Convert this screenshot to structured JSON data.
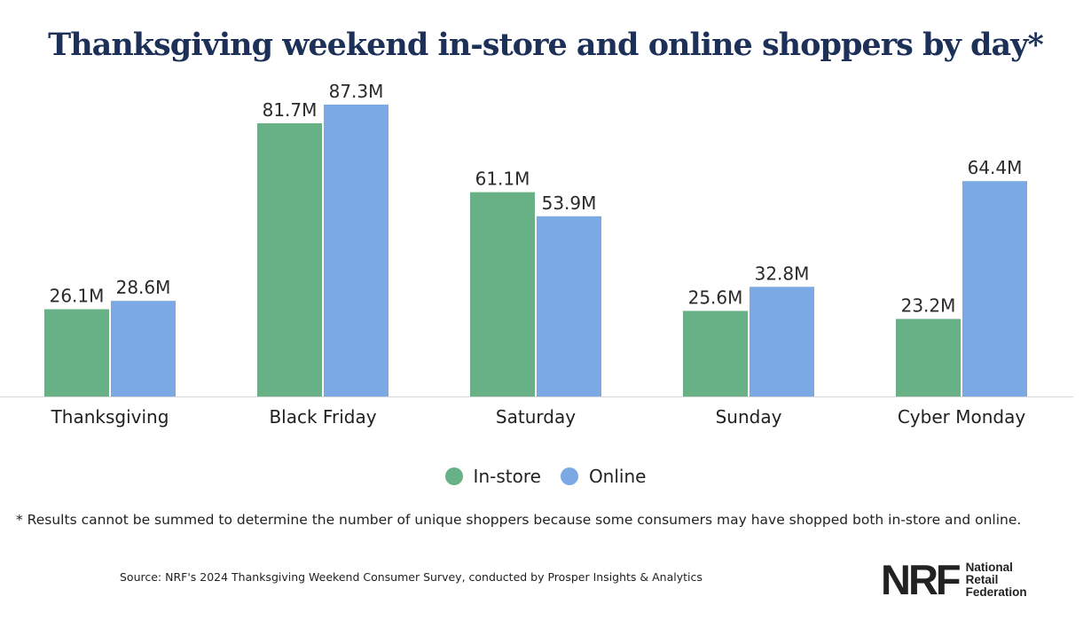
{
  "title": "Thanksgiving weekend in-store and online shoppers by day*",
  "colors": {
    "in_store": "#68b085",
    "online": "#7aa9e3",
    "title": "#1c3058"
  },
  "chart_data": {
    "type": "bar",
    "categories": [
      "Thanksgiving",
      "Black Friday",
      "Saturday",
      "Sunday",
      "Cyber Monday"
    ],
    "series": [
      {
        "name": "In-store",
        "values": [
          26.1,
          81.7,
          61.1,
          25.6,
          23.2
        ],
        "labels": [
          "26.1M",
          "81.7M",
          "61.1M",
          "25.6M",
          "23.2M"
        ]
      },
      {
        "name": "Online",
        "values": [
          28.6,
          87.3,
          53.9,
          32.8,
          64.4
        ],
        "labels": [
          "28.6M",
          "87.3M",
          "53.9M",
          "32.8M",
          "64.4M"
        ]
      }
    ],
    "ylim": [
      0,
      100
    ],
    "grid": false,
    "legend_position": "bottom"
  },
  "footnote": "* Results cannot be summed to determine the number of unique shoppers because some consumers may have shopped both in-store and online.",
  "source": "Source: NRF's 2024 Thanksgiving Weekend Consumer Survey, conducted by Prosper Insights & Analytics",
  "logo": {
    "mark": "NRF",
    "lines": [
      "National",
      "Retail",
      "Federation"
    ]
  }
}
